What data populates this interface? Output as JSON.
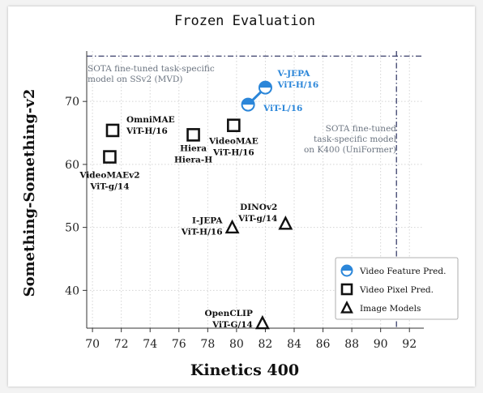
{
  "chart_data": {
    "type": "scatter",
    "title": "Frozen Evaluation",
    "xlabel": "Kinetics 400",
    "ylabel": "Something-Something-v2",
    "xlim": [
      69.6,
      93
    ],
    "ylim": [
      34,
      78
    ],
    "xticks": [
      70,
      72,
      74,
      76,
      78,
      80,
      82,
      84,
      86,
      88,
      90,
      92
    ],
    "yticks": [
      40,
      50,
      60,
      70
    ],
    "grid": true,
    "legend_position": "bottom-right",
    "legend": [
      {
        "marker": "half-circle",
        "label": "Video Feature Pred."
      },
      {
        "marker": "square",
        "label": "Video Pixel Pred."
      },
      {
        "marker": "triangle",
        "label": "Image Models"
      }
    ],
    "points": [
      {
        "group": "Video Feature Pred.",
        "label": [
          "V-JEPA",
          "ViT-H/16"
        ],
        "x": 82.0,
        "y": 72.2
      },
      {
        "group": "Video Feature Pred.",
        "label": [
          "ViT-L/16"
        ],
        "x": 80.8,
        "y": 69.5
      },
      {
        "group": "Video Pixel Pred.",
        "label": [
          "OmniMAE",
          "ViT-H/16"
        ],
        "x": 71.4,
        "y": 65.4
      },
      {
        "group": "Video Pixel Pred.",
        "label": [
          "VideoMAEv2",
          "ViT-g/14"
        ],
        "x": 71.2,
        "y": 61.2
      },
      {
        "group": "Video Pixel Pred.",
        "label": [
          "Hiera",
          "Hiera-H"
        ],
        "x": 77.0,
        "y": 64.7
      },
      {
        "group": "Video Pixel Pred.",
        "label": [
          "VideoMAE",
          "ViT-H/16"
        ],
        "x": 79.8,
        "y": 66.2
      },
      {
        "group": "Image Models",
        "label": [
          "I-JEPA",
          "ViT-H/16"
        ],
        "x": 79.7,
        "y": 50.0
      },
      {
        "group": "Image Models",
        "label": [
          "DINOv2",
          "ViT-g/14"
        ],
        "x": 83.4,
        "y": 50.6
      },
      {
        "group": "Image Models",
        "label": [
          "OpenCLIP",
          "ViT-G/14"
        ],
        "x": 81.8,
        "y": 34.8
      }
    ],
    "connections": [
      [
        "ViT-L/16",
        "V-JEPA"
      ]
    ],
    "reference_lines": [
      {
        "orientation": "horizontal",
        "value": 77.2,
        "style": "dash-dot",
        "label": [
          "SOTA fine-tuned task-specific",
          "model on SSv2 (MVD)"
        ]
      },
      {
        "orientation": "vertical",
        "value": 91.1,
        "style": "dash-dot",
        "label": [
          "SOTA fine-tuned",
          "task-specific model",
          "on K400 (UniFormer)"
        ]
      }
    ]
  },
  "colors": {
    "blue": "#2b86d9",
    "black": "#111111",
    "reference_line": "#3a3f6b",
    "annotation_text": "#6b7480",
    "grid": "#d4d4d4"
  }
}
